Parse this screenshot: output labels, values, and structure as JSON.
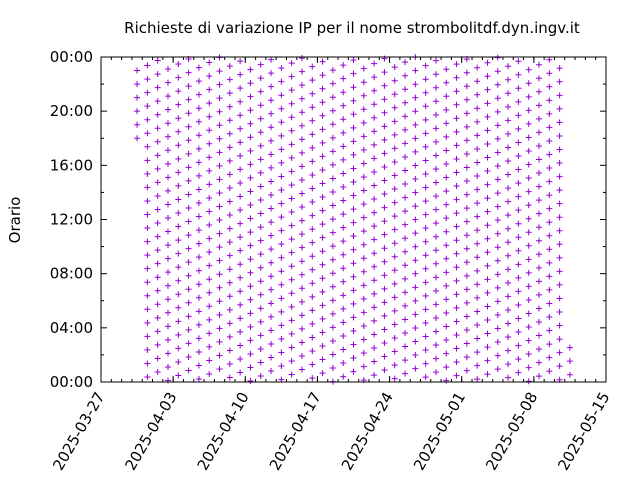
{
  "chart_data": {
    "type": "scatter",
    "title": "Richieste di variazione IP per il nome strombolitdf.dyn.ingv.it",
    "xlabel": "",
    "ylabel": "Orario",
    "x_ticks": [
      "2025-03-27",
      "2025-04-03",
      "2025-04-10",
      "2025-04-17",
      "2025-04-24",
      "2025-05-01",
      "2025-05-08",
      "2025-05-15"
    ],
    "y_ticks": [
      "00:00",
      "04:00",
      "08:00",
      "12:00",
      "16:00",
      "20:00",
      "00:00"
    ],
    "xlim": [
      "2025-03-27",
      "2025-05-15"
    ],
    "ylim_hours": [
      0,
      24
    ],
    "marker": "+",
    "color": "#9400D3",
    "grid": false,
    "legend": "none",
    "series": [
      {
        "description": "Roughly hourly IP change requests; each column is one day, each point the time of a request",
        "first_day": "2025-03-30",
        "last_day": "2025-05-11",
        "points_per_day": "about one per hour",
        "pattern": "daily columns of hourly requests with the time of day drifting slightly from day to day",
        "partial_days": [
          {
            "day": "2025-03-30",
            "from": "17:30",
            "to": "24:00"
          },
          {
            "day": "2025-05-11",
            "from": "00:00",
            "to": "03:30"
          }
        ]
      }
    ]
  }
}
